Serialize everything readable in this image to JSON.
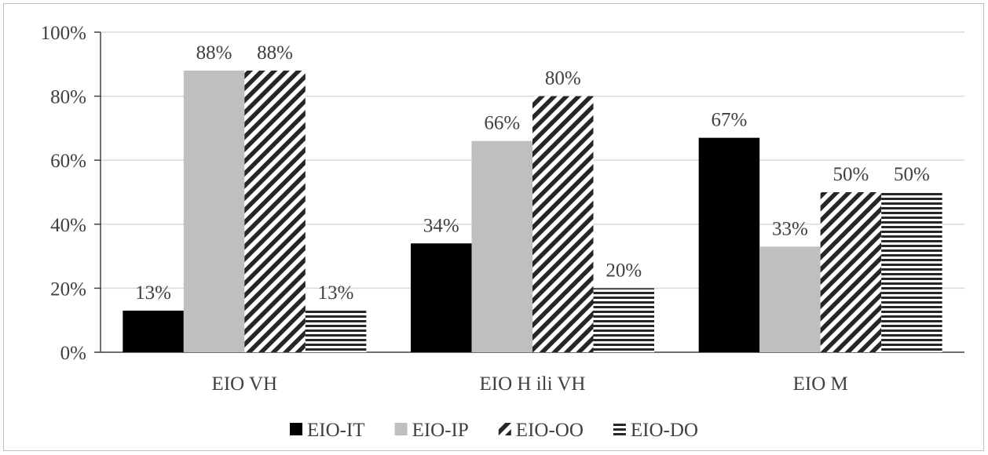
{
  "chart_data": {
    "type": "bar",
    "categories": [
      "EIO VH",
      "EIO H ili VH",
      "EIO M"
    ],
    "series": [
      {
        "name": "EIO-IT",
        "values": [
          13,
          34,
          67
        ],
        "labels": [
          "13%",
          "34%",
          "67%"
        ],
        "color": "#000000",
        "pattern": "solid"
      },
      {
        "name": "EIO-IP",
        "values": [
          88,
          66,
          33
        ],
        "labels": [
          "88%",
          "66%",
          "33%"
        ],
        "color": "#bfbfbf",
        "pattern": "solid"
      },
      {
        "name": "EIO-OO",
        "values": [
          88,
          80,
          50
        ],
        "labels": [
          "88%",
          "80%",
          "50%"
        ],
        "color": "#262626",
        "pattern": "diagonal-stripes"
      },
      {
        "name": "EIO-DO",
        "values": [
          13,
          20,
          50
        ],
        "labels": [
          "13%",
          "20%",
          "50%"
        ],
        "color": "#262626",
        "pattern": "horizontal-stripes"
      }
    ],
    "ylim": [
      0,
      100
    ],
    "yticks": [
      0,
      20,
      40,
      60,
      80,
      100
    ],
    "ytick_labels": [
      "0%",
      "20%",
      "40%",
      "60%",
      "80%",
      "100%"
    ],
    "grid": true,
    "legend": "bottom",
    "title": "",
    "xlabel": "",
    "ylabel": ""
  }
}
